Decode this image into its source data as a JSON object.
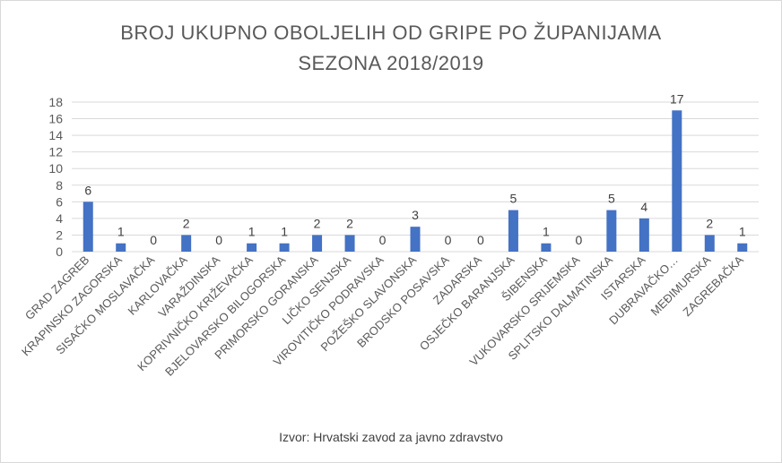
{
  "chart_data": {
    "type": "bar",
    "title": "BROJ UKUPNO OBOLJELIH OD GRIPE PO ŽUPANIJAMA",
    "subtitle": "SEZONA 2018/2019",
    "categories": [
      "GRAD ZAGREB",
      "KRAPINSKO ZAGORSKA",
      "SISAČKO MOSLAVAČKA",
      "KARLOVAČKA",
      "VARAŽDINSKA",
      "KOPRIVNIČKO KRIŽEVAČKA",
      "BJELOVARSKO BILOGORSKA",
      "PRIMORSKO GORANSKA",
      "LIČKO SENJSKA",
      "VIROVITIČKO PODRAVSKA",
      "POŽEŠKO SLAVONSKA",
      "BRODSKO POSAVSKA",
      "ZADARSKA",
      "OSJEČKO BARANJSKA",
      "ŠIBENSKA",
      "VUKOVARSKO SRIJEMSKA",
      "SPLITSKO DALMATINSKA",
      "ISTARSKA",
      "DUBRAVAČKO…",
      "MEĐIMURSKA",
      "ZAGREBAČKA"
    ],
    "values": [
      6,
      1,
      0,
      2,
      0,
      1,
      1,
      2,
      2,
      0,
      3,
      0,
      0,
      5,
      1,
      0,
      5,
      4,
      17,
      2,
      1
    ],
    "yticks": [
      "0",
      "2",
      "4",
      "6",
      "8",
      "10",
      "12",
      "14",
      "16",
      "18"
    ],
    "ylim": [
      0,
      18
    ],
    "xlabel": "",
    "ylabel": "",
    "grid": true,
    "data_labels": true,
    "legend": "none",
    "bar_color": "#4472c4",
    "source": "Izvor: Hrvatski zavod za javno zdravstvo"
  }
}
